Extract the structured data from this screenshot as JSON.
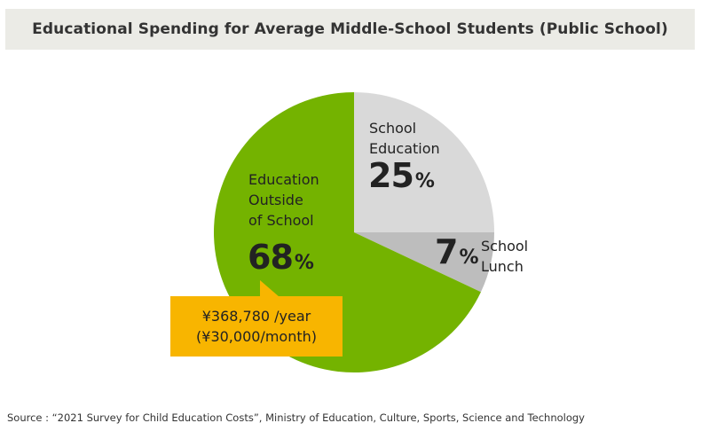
{
  "chart_data": {
    "type": "pie",
    "title": "Educational Spending for Average Middle-School Students (Public School)",
    "slices": [
      {
        "label": "School Education",
        "value": 25,
        "color": "#d9d9d9"
      },
      {
        "label": "School Lunch",
        "value": 7,
        "color": "#bdbdbd"
      },
      {
        "label": "Education Outside of School",
        "value": 68,
        "color": "#74b300"
      }
    ],
    "unit": "%"
  },
  "labels": {
    "school_education_line1": "School",
    "school_education_line2": "Education",
    "school_education_pct": "25",
    "school_lunch_line1": "School",
    "school_lunch_line2": "Lunch",
    "school_lunch_pct": "7",
    "outside_line1": "Education",
    "outside_line2": "Outside",
    "outside_line3": "of School",
    "outside_pct": "68",
    "percent_sign": "%"
  },
  "callout": {
    "line1": "¥368,780 /year",
    "line2": "(¥30,000/month)"
  },
  "source": "Source : “2021 Survey for Child Education Costs”, Ministry of Education, Culture, Sports, Science and Technology"
}
